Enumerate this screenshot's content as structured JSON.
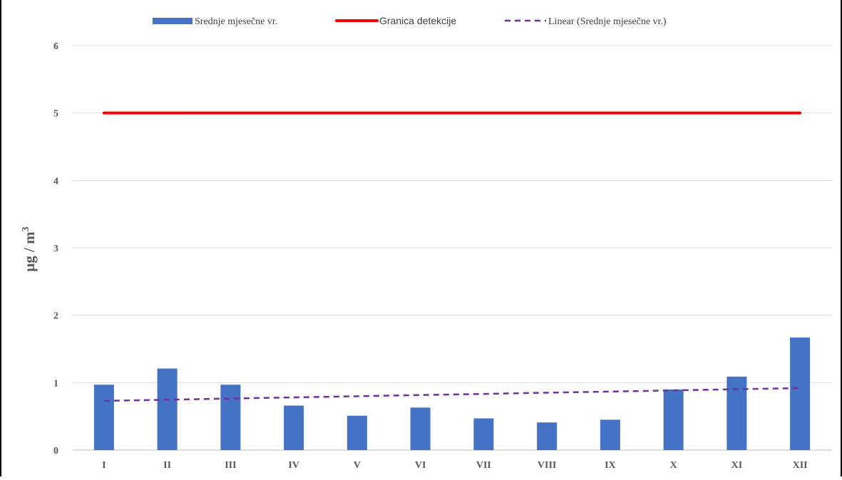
{
  "chart_data": {
    "type": "bar",
    "title": "",
    "xlabel": "",
    "ylabel": "µg / m",
    "ylabel_superscript": "3",
    "ylim": [
      0,
      6
    ],
    "yticks": [
      "0",
      "1",
      "2",
      "3",
      "4",
      "5",
      "6"
    ],
    "grid": true,
    "legend_position": "top",
    "categories": [
      "I",
      "II",
      "III",
      "IV",
      "V",
      "VI",
      "VII",
      "VIII",
      "IX",
      "X",
      "XI",
      "XII"
    ],
    "series": [
      {
        "name": "Srednje mjesečne vr.",
        "type": "bar",
        "color": "#4472C4",
        "values": [
          0.97,
          1.21,
          0.97,
          0.66,
          0.51,
          0.63,
          0.47,
          0.41,
          0.45,
          0.9,
          1.09,
          1.67
        ]
      },
      {
        "name": "Granica detekcije",
        "type": "line",
        "color": "#FF0000",
        "values": [
          5,
          5,
          5,
          5,
          5,
          5,
          5,
          5,
          5,
          5,
          5,
          5
        ]
      },
      {
        "name": "Linear (Srednje mjesečne vr.)",
        "type": "trendline",
        "style": "dashed",
        "color": "#7030A0",
        "start": 0.73,
        "end": 0.92
      }
    ]
  }
}
